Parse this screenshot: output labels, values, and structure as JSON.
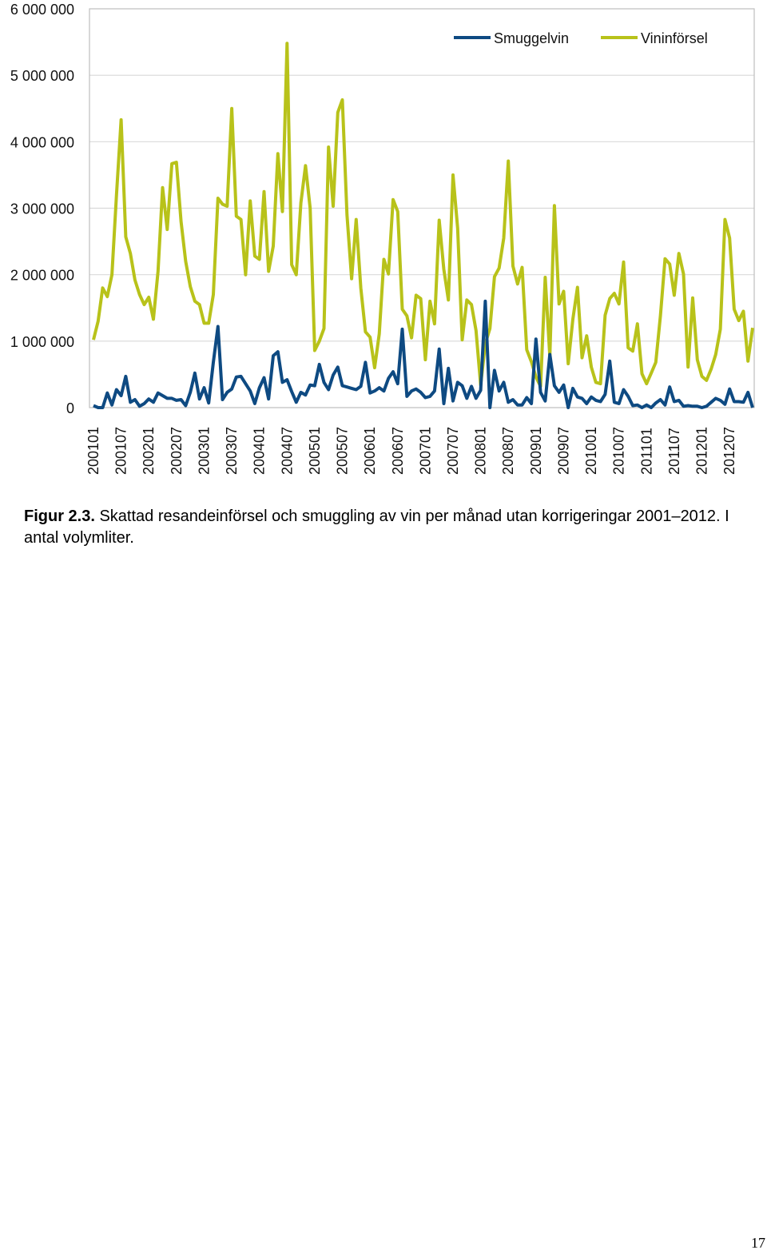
{
  "chart_data": {
    "type": "line",
    "title": "",
    "xlabel": "",
    "ylabel": "",
    "ylim": [
      0,
      6000000
    ],
    "grid": true,
    "legend": "top-right",
    "y_ticks": [
      {
        "value": 0,
        "label": "0"
      },
      {
        "value": 1000000,
        "label": "1 000 000"
      },
      {
        "value": 2000000,
        "label": "2 000 000"
      },
      {
        "value": 3000000,
        "label": "3 000 000"
      },
      {
        "value": 4000000,
        "label": "4 000 000"
      },
      {
        "value": 5000000,
        "label": "5 000 000"
      },
      {
        "value": 6000000,
        "label": "6 000 000"
      }
    ],
    "x_tick_labels": [
      "200101",
      "200107",
      "200201",
      "200207",
      "200301",
      "200307",
      "200401",
      "200407",
      "200501",
      "200507",
      "200601",
      "200607",
      "200701",
      "200707",
      "200801",
      "200807",
      "200901",
      "200907",
      "201001",
      "201007",
      "201101",
      "201107",
      "201201",
      "201207"
    ],
    "x_tick_step": 6,
    "series": [
      {
        "name": "Smuggelvin",
        "color": "#0e4a82",
        "values": [
          30000,
          0,
          0,
          220000,
          40000,
          270000,
          180000,
          470000,
          80000,
          120000,
          20000,
          60000,
          130000,
          80000,
          220000,
          180000,
          140000,
          140000,
          110000,
          120000,
          30000,
          230000,
          520000,
          130000,
          300000,
          70000,
          680000,
          1220000,
          120000,
          230000,
          280000,
          460000,
          470000,
          360000,
          250000,
          60000,
          300000,
          450000,
          130000,
          780000,
          840000,
          380000,
          420000,
          240000,
          80000,
          230000,
          190000,
          340000,
          330000,
          650000,
          380000,
          270000,
          490000,
          610000,
          330000,
          310000,
          290000,
          270000,
          320000,
          680000,
          220000,
          250000,
          300000,
          250000,
          440000,
          540000,
          360000,
          1180000,
          170000,
          250000,
          280000,
          230000,
          150000,
          170000,
          250000,
          880000,
          60000,
          590000,
          100000,
          380000,
          330000,
          140000,
          320000,
          140000,
          260000,
          1600000,
          0,
          560000,
          250000,
          380000,
          80000,
          120000,
          40000,
          40000,
          150000,
          60000,
          1030000,
          230000,
          100000,
          800000,
          330000,
          230000,
          340000,
          0,
          290000,
          160000,
          140000,
          60000,
          160000,
          110000,
          90000,
          200000,
          700000,
          80000,
          60000,
          270000,
          170000,
          30000,
          40000,
          0,
          40000,
          0,
          70000,
          120000,
          40000,
          310000,
          90000,
          110000,
          20000,
          30000,
          20000,
          20000,
          0,
          20000,
          80000,
          140000,
          110000,
          50000,
          280000,
          90000,
          90000,
          80000,
          230000,
          0
        ],
        "start_label": "200101",
        "end_label": "201212"
      },
      {
        "name": "Vininförsel",
        "color": "#b8c21a",
        "values": [
          1020000,
          1300000,
          1800000,
          1670000,
          2000000,
          3200000,
          4330000,
          2570000,
          2320000,
          1920000,
          1700000,
          1550000,
          1660000,
          1330000,
          2050000,
          3310000,
          2680000,
          3670000,
          3690000,
          2800000,
          2200000,
          1820000,
          1600000,
          1550000,
          1270000,
          1270000,
          1700000,
          3150000,
          3060000,
          3030000,
          4500000,
          2880000,
          2830000,
          2000000,
          3110000,
          2280000,
          2230000,
          3250000,
          2050000,
          2430000,
          3820000,
          2950000,
          5480000,
          2150000,
          2000000,
          3080000,
          3640000,
          3000000,
          860000,
          1000000,
          1190000,
          3920000,
          3030000,
          4440000,
          4630000,
          2900000,
          1940000,
          2830000,
          1800000,
          1140000,
          1060000,
          600000,
          1110000,
          2230000,
          2010000,
          3130000,
          2950000,
          1480000,
          1380000,
          1050000,
          1690000,
          1640000,
          720000,
          1600000,
          1260000,
          2820000,
          2080000,
          1620000,
          3500000,
          2700000,
          1020000,
          1620000,
          1550000,
          1160000,
          340000,
          960000,
          1190000,
          1970000,
          2100000,
          2550000,
          3710000,
          2130000,
          1860000,
          2110000,
          870000,
          690000,
          460000,
          320000,
          1960000,
          770000,
          3040000,
          1560000,
          1750000,
          660000,
          1330000,
          1810000,
          750000,
          1080000,
          610000,
          380000,
          360000,
          1390000,
          1640000,
          1720000,
          1560000,
          2190000,
          900000,
          850000,
          1260000,
          510000,
          360000,
          520000,
          680000,
          1380000,
          2240000,
          2160000,
          1690000,
          2320000,
          2010000,
          610000,
          1650000,
          720000,
          470000,
          410000,
          580000,
          800000,
          1180000,
          2830000,
          2550000,
          1480000,
          1310000,
          1450000,
          700000,
          1200000
        ],
        "start_label": "200101",
        "end_label": "201212"
      }
    ]
  },
  "caption": {
    "label": "Figur 2.3.",
    "text": " Skattad resandeinförsel och smuggling av vin per månad utan korrigeringar 2001–2012. I antal volymliter."
  },
  "page_number": "17"
}
